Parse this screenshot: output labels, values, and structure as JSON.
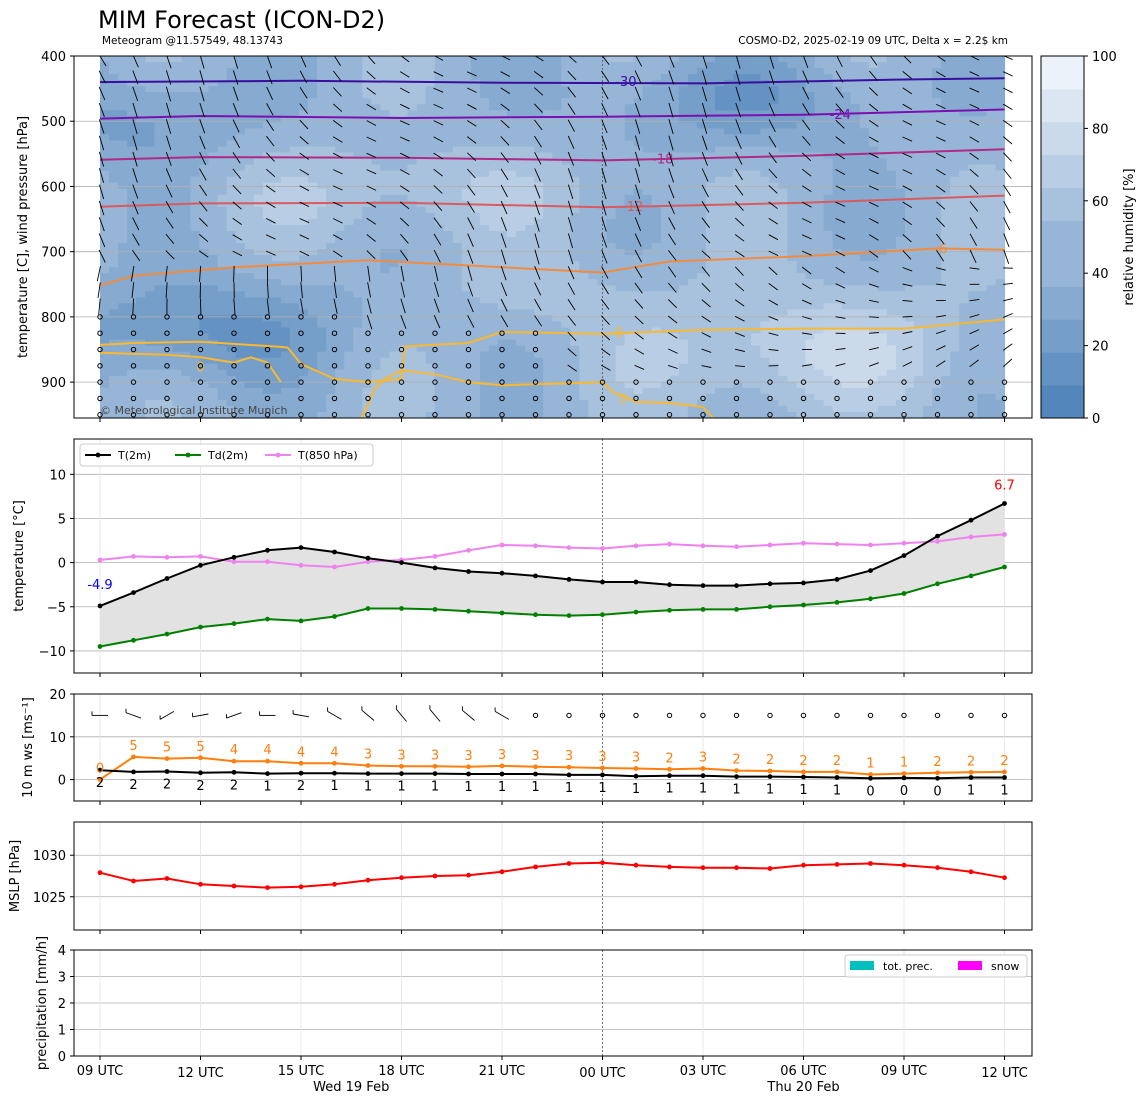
{
  "header": {
    "title": "MIM Forecast (ICON-D2)",
    "subtitle_left": "Meteogram @11.57549, 48.13743",
    "subtitle_right": "COSMO-D2, 2025-02-19 09 UTC, Delta x = 2.2$ km",
    "copyright": "© Meteorological Institute Munich"
  },
  "x_axis": {
    "tick_labels": [
      "09 UTC",
      "12 UTC",
      "15 UTC",
      "18 UTC",
      "21 UTC",
      "00 UTC",
      "03 UTC",
      "06 UTC",
      "09 UTC",
      "12 UTC"
    ],
    "day_labels": [
      "Wed 19 Feb",
      "Thu 20 Feb"
    ]
  },
  "colors": {
    "t2m": "#000000",
    "td2m": "#008000",
    "t850": "#ee82ee",
    "wind_speed": "#ff7f0e",
    "wind_line": "#000000",
    "mslp": "#ff0000",
    "precip_total": "#00bfbf",
    "precip_snow": "#ff00ff",
    "humidity_dark": "#4a80b8",
    "humidity_light": "#f4f8fc"
  },
  "chart_data": [
    {
      "id": "upper-air",
      "type": "heatmap",
      "ylabel": "temperature [C], wind pressure [hPa]",
      "y_ticks": [
        400,
        500,
        600,
        700,
        800,
        900
      ],
      "ylim": [
        955,
        400
      ],
      "y_inverted": true,
      "colorbar": {
        "label": "relative humidity [%]",
        "ticks": [
          0,
          20,
          40,
          60,
          80,
          100
        ],
        "range": [
          0,
          100
        ]
      },
      "isotherms": [
        {
          "label": "-30",
          "color": "#3b0f9e",
          "x": [
            0,
            6,
            12,
            18,
            24,
            27
          ],
          "p": [
            440,
            438,
            441,
            442,
            436,
            434
          ],
          "label_at": 15.7,
          "label_p": 438
        },
        {
          "label": "-24",
          "color": "#7b10b0",
          "x": [
            0,
            3,
            9,
            15,
            21,
            27
          ],
          "p": [
            496,
            492,
            495,
            493,
            490,
            482
          ],
          "label_at": 22.1,
          "label_p": 489
        },
        {
          "label": "-18",
          "color": "#b02a88",
          "x": [
            0,
            3,
            9,
            15,
            21,
            27
          ],
          "p": [
            559,
            555,
            556,
            560,
            553,
            543
          ],
          "label_at": 16.8,
          "label_p": 557
        },
        {
          "label": "-12",
          "color": "#d85b60",
          "x": [
            0,
            3,
            9,
            15,
            21,
            27
          ],
          "p": [
            631,
            626,
            625,
            632,
            625,
            614
          ],
          "label_at": 15.9,
          "label_p": 630
        },
        {
          "label": "-6",
          "color": "#f08c40",
          "x": [
            0,
            1,
            4,
            8,
            12,
            15,
            17,
            21,
            25,
            27
          ],
          "p": [
            752,
            737,
            724,
            713,
            724,
            732,
            715,
            707,
            695,
            697
          ],
          "label_at": 25.1,
          "label_p": 695
        },
        {
          "label": "0",
          "color": "#f8b832",
          "x": [
            0,
            1,
            3,
            5.4,
            5.6,
            6,
            7,
            8,
            9,
            9.1,
            11,
            12,
            15,
            18,
            21,
            24,
            27
          ],
          "p": [
            843,
            840,
            838,
            846,
            847,
            872,
            895,
            900,
            895,
            845,
            840,
            823,
            826,
            820,
            818,
            818,
            804
          ],
          "label_at": 15.5,
          "label_p": 823
        },
        {
          "label": "0",
          "color": "#f8b832",
          "x": [
            0,
            2,
            3,
            4,
            4.5,
            5,
            5.4
          ],
          "p": [
            855,
            858,
            862,
            870,
            862,
            870,
            900
          ],
          "label_at": 3,
          "label_p": 876
        },
        {
          "label": "0",
          "color": "#f8b832",
          "x": [
            7.8,
            8,
            8.2,
            8.5,
            9,
            10,
            11,
            12,
            13,
            14,
            15,
            15.3,
            16,
            17,
            18,
            18.3
          ],
          "p": [
            955,
            935,
            910,
            895,
            882,
            888,
            900,
            905,
            903,
            902,
            900,
            915,
            930,
            932,
            938,
            955
          ],
          "label_at": 15.6,
          "label_p": 925
        }
      ]
    },
    {
      "id": "surface-temperature",
      "type": "line",
      "ylabel": "temperature [$^\\circ$C]",
      "y_ticks": [
        -10,
        -5,
        0,
        5,
        10
      ],
      "ylim": [
        -12.5,
        14
      ],
      "legend": [
        "T(2m)",
        "Td(2m)",
        "T(850 hPa)"
      ],
      "legend_position": "top-left",
      "annotations": {
        "min": "-4.9",
        "max": "6.7"
      },
      "series": [
        {
          "name": "T(2m)",
          "values": [
            -4.9,
            -3.4,
            -1.8,
            -0.3,
            0.6,
            1.4,
            1.7,
            1.2,
            0.5,
            0.0,
            -0.6,
            -1.0,
            -1.2,
            -1.5,
            -1.9,
            -2.2,
            -2.2,
            -2.5,
            -2.6,
            -2.6,
            -2.4,
            -2.3,
            -1.9,
            -0.9,
            0.8,
            3.0,
            4.8,
            6.7
          ]
        },
        {
          "name": "Td(2m)",
          "values": [
            -9.5,
            -8.8,
            -8.1,
            -7.3,
            -6.9,
            -6.4,
            -6.6,
            -6.1,
            -5.2,
            -5.2,
            -5.3,
            -5.5,
            -5.7,
            -5.9,
            -6.0,
            -5.9,
            -5.6,
            -5.4,
            -5.3,
            -5.3,
            -5.0,
            -4.8,
            -4.5,
            -4.1,
            -3.5,
            -2.4,
            -1.5,
            -0.5
          ]
        },
        {
          "name": "T(850 hPa)",
          "values": [
            0.3,
            0.7,
            0.6,
            0.7,
            0.1,
            0.1,
            -0.3,
            -0.5,
            0.1,
            0.3,
            0.7,
            1.4,
            2.0,
            1.9,
            1.7,
            1.6,
            1.9,
            2.1,
            1.9,
            1.8,
            2.0,
            2.2,
            2.1,
            2.0,
            2.2,
            2.4,
            2.9,
            3.2
          ]
        }
      ]
    },
    {
      "id": "wind-10m",
      "type": "line",
      "ylabel": "10 m ws [ms$^{-1}$]",
      "y_ticks": [
        0,
        10,
        20
      ],
      "ylim": [
        -5,
        20
      ],
      "series": [
        {
          "name": "gust",
          "values": [
            0,
            5.3,
            4.9,
            5.1,
            4.3,
            4.3,
            3.8,
            3.8,
            3.3,
            3.1,
            3.1,
            3.0,
            3.2,
            3.0,
            2.9,
            2.7,
            2.6,
            2.4,
            2.6,
            2.1,
            2.0,
            1.8,
            1.8,
            1.2,
            1.4,
            1.6,
            1.7,
            1.8
          ],
          "labels": [
            "0",
            "5",
            "5",
            "5",
            "4",
            "4",
            "4",
            "4",
            "3",
            "3",
            "3",
            "3",
            "3",
            "3",
            "3",
            "3",
            "3",
            "2",
            "3",
            "2",
            "2",
            "2",
            "2",
            "1",
            "1",
            "2",
            "2",
            "2"
          ]
        },
        {
          "name": "mean",
          "values": [
            2.2,
            1.8,
            1.9,
            1.6,
            1.7,
            1.4,
            1.5,
            1.5,
            1.4,
            1.4,
            1.4,
            1.3,
            1.3,
            1.3,
            1.1,
            1.1,
            0.8,
            0.9,
            0.9,
            0.7,
            0.7,
            0.6,
            0.5,
            0.3,
            0.4,
            0.3,
            0.5,
            0.5
          ],
          "labels": [
            "2",
            "2",
            "2",
            "2",
            "2",
            "1",
            "2",
            "1",
            "1",
            "1",
            "1",
            "1",
            "1",
            "1",
            "1",
            "1",
            "1",
            "1",
            "1",
            "1",
            "1",
            "1",
            "1",
            "0",
            "0",
            "0",
            "1",
            "1"
          ]
        }
      ],
      "wind_barb_directions": [
        90,
        110,
        60,
        80,
        70,
        90,
        100,
        120,
        130,
        140,
        140,
        130,
        120,
        null,
        null,
        null,
        null,
        null,
        null,
        null,
        null,
        null,
        null,
        null,
        null,
        null,
        null,
        null
      ]
    },
    {
      "id": "mslp",
      "type": "line",
      "ylabel": "MSLP [hPa]",
      "y_ticks": [
        1025,
        1030
      ],
      "ylim": [
        1021,
        1034
      ],
      "series": [
        {
          "name": "MSLP",
          "values": [
            1027.9,
            1026.9,
            1027.2,
            1026.5,
            1026.3,
            1026.1,
            1026.2,
            1026.5,
            1027.0,
            1027.3,
            1027.5,
            1027.6,
            1028.0,
            1028.6,
            1029.0,
            1029.1,
            1028.8,
            1028.6,
            1028.5,
            1028.5,
            1028.4,
            1028.8,
            1028.9,
            1029.0,
            1028.8,
            1028.5,
            1028.0,
            1027.3
          ]
        }
      ]
    },
    {
      "id": "precipitation",
      "type": "bar",
      "ylabel": "precipitation [mm/h]",
      "y_ticks": [
        0,
        1,
        2,
        3,
        4
      ],
      "ylim": [
        0,
        4
      ],
      "legend": [
        "tot. prec.",
        "snow"
      ],
      "legend_position": "top-right",
      "series": [
        {
          "name": "tot. prec.",
          "values": [
            0,
            0,
            0,
            0,
            0,
            0,
            0,
            0,
            0,
            0,
            0,
            0,
            0,
            0,
            0,
            0,
            0,
            0,
            0,
            0,
            0,
            0,
            0,
            0,
            0,
            0,
            0,
            0
          ]
        },
        {
          "name": "snow",
          "values": [
            0,
            0,
            0,
            0,
            0,
            0,
            0,
            0,
            0,
            0,
            0,
            0,
            0,
            0,
            0,
            0,
            0,
            0,
            0,
            0,
            0,
            0,
            0,
            0,
            0,
            0,
            0,
            0
          ]
        }
      ]
    }
  ]
}
